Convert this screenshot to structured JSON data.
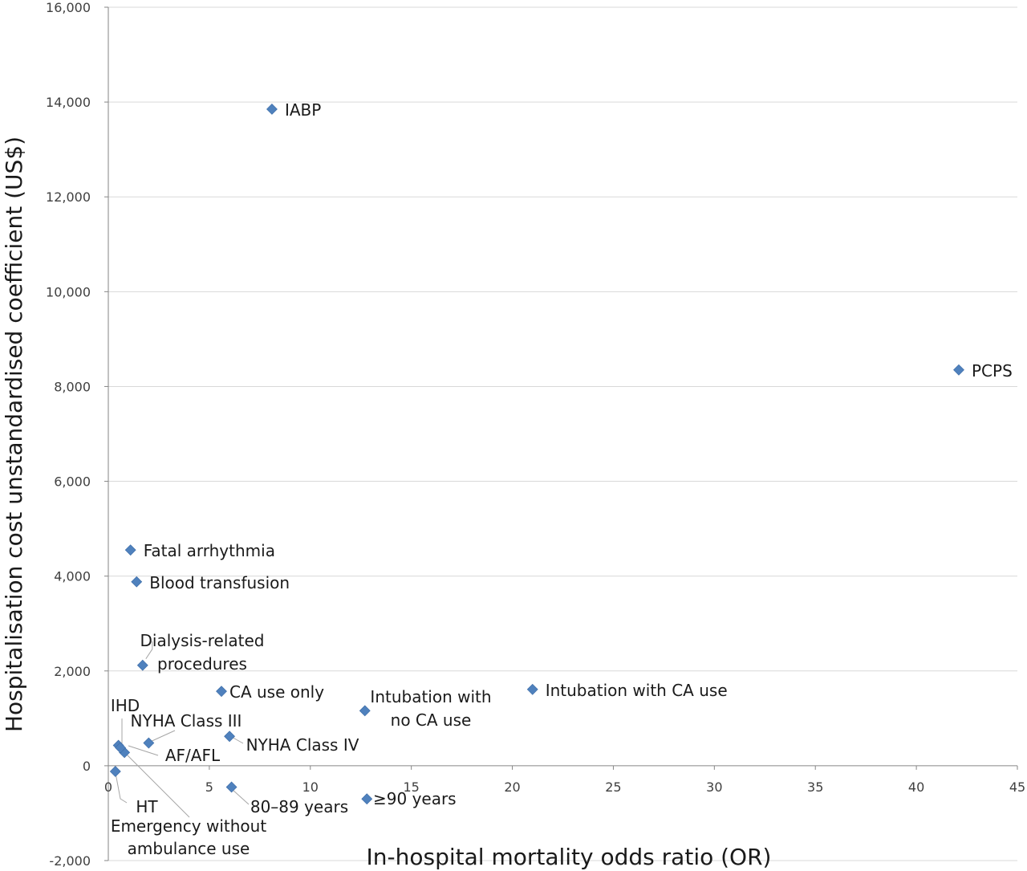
{
  "chart_data": {
    "type": "scatter",
    "xlabel": "In-hospital mortality odds ratio (OR)",
    "ylabel": "Hospitalisation cost unstandardised coefficient (US$)",
    "xlim": [
      0,
      45
    ],
    "ylim": [
      -2000,
      16000
    ],
    "x_ticks": [
      0,
      5,
      10,
      15,
      20,
      25,
      30,
      35,
      40,
      45
    ],
    "y_ticks": [
      -2000,
      0,
      2000,
      4000,
      6000,
      8000,
      10000,
      12000,
      14000,
      16000
    ],
    "x_tick_labels": [
      "0",
      "5",
      "10",
      "15",
      "20",
      "25",
      "30",
      "35",
      "40",
      "45"
    ],
    "y_tick_labels": [
      "-2,000",
      "0",
      "2,000",
      "4,000",
      "6,000",
      "8,000",
      "10,000",
      "12,000",
      "14,000",
      "16,000"
    ],
    "grid": "horizontal",
    "marker_color": "#4f81bd",
    "points": [
      {
        "label": "IABP",
        "x": 8.1,
        "y": 13850
      },
      {
        "label": "PCPS",
        "x": 42.1,
        "y": 8350
      },
      {
        "label": "Fatal arrhythmia",
        "x": 1.1,
        "y": 4550
      },
      {
        "label": "Blood transfusion",
        "x": 1.4,
        "y": 3880
      },
      {
        "label": "Dialysis-related procedures",
        "x": 1.7,
        "y": 2120
      },
      {
        "label": "CA use only",
        "x": 5.6,
        "y": 1570
      },
      {
        "label": "Intubation with no CA use",
        "x": 12.7,
        "y": 1160
      },
      {
        "label": "Intubation with CA use",
        "x": 21.0,
        "y": 1610
      },
      {
        "label": "IHD",
        "x": 0.5,
        "y": 430
      },
      {
        "label": "NYHA Class III",
        "x": 2.0,
        "y": 480
      },
      {
        "label": "AF/AFL",
        "x": 0.8,
        "y": 280
      },
      {
        "label": "NYHA Class IV",
        "x": 6.0,
        "y": 620
      },
      {
        "label": "HT",
        "x": 0.35,
        "y": -120
      },
      {
        "label": "Emergency without ambulance use",
        "x": 0.6,
        "y": 380
      },
      {
        "label": "80–89 years",
        "x": 6.1,
        "y": -450
      },
      {
        "label": "≥90 years",
        "x": 12.8,
        "y": -700
      }
    ]
  }
}
